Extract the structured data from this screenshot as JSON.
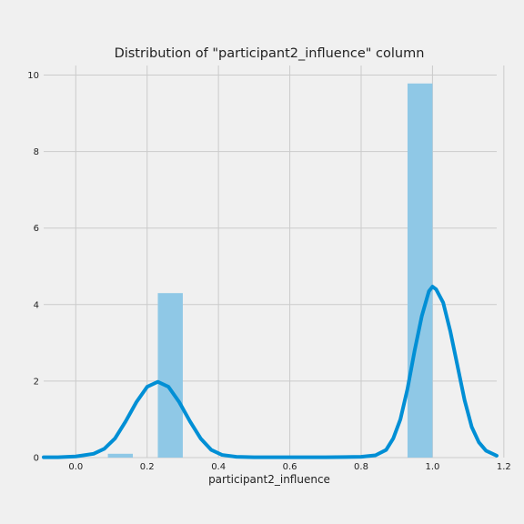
{
  "chart_data": {
    "type": "histogram",
    "title": "Distribution of \"participant2_influence\" column",
    "xlabel": "participant2_influence",
    "ylabel": "",
    "xlim": [
      -0.09,
      1.18
    ],
    "ylim": [
      0,
      10.25
    ],
    "x_ticks": [
      {
        "value": 0.0,
        "label": "0.0"
      },
      {
        "value": 0.2,
        "label": "0.2"
      },
      {
        "value": 0.4,
        "label": "0.4"
      },
      {
        "value": 0.6,
        "label": "0.6"
      },
      {
        "value": 0.8,
        "label": "0.8"
      },
      {
        "value": 1.0,
        "label": "1.0"
      },
      {
        "value": 1.2,
        "label": "1.2"
      }
    ],
    "y_ticks": [
      {
        "value": 0,
        "label": "0"
      },
      {
        "value": 2,
        "label": "2"
      },
      {
        "value": 4,
        "label": "4"
      },
      {
        "value": 6,
        "label": "6"
      },
      {
        "value": 8,
        "label": "8"
      },
      {
        "value": 10,
        "label": "10"
      }
    ],
    "grid": true,
    "bins": [
      {
        "x0": 0.09,
        "x1": 0.16,
        "value": 0.1
      },
      {
        "x0": 0.23,
        "x1": 0.3,
        "value": 4.3
      },
      {
        "x0": 0.93,
        "x1": 1.0,
        "value": 9.78
      }
    ],
    "kde": {
      "x": [
        -0.09,
        -0.05,
        0.0,
        0.05,
        0.08,
        0.11,
        0.14,
        0.17,
        0.2,
        0.23,
        0.26,
        0.29,
        0.32,
        0.35,
        0.38,
        0.41,
        0.45,
        0.5,
        0.6,
        0.7,
        0.8,
        0.84,
        0.87,
        0.89,
        0.91,
        0.93,
        0.95,
        0.97,
        0.99,
        1.0,
        1.01,
        1.03,
        1.05,
        1.07,
        1.09,
        1.11,
        1.13,
        1.15,
        1.18
      ],
      "y": [
        0.01,
        0.01,
        0.03,
        0.1,
        0.23,
        0.5,
        0.95,
        1.45,
        1.85,
        1.98,
        1.85,
        1.45,
        0.95,
        0.5,
        0.2,
        0.07,
        0.02,
        0.01,
        0.01,
        0.01,
        0.02,
        0.06,
        0.2,
        0.5,
        1.0,
        1.8,
        2.8,
        3.7,
        4.35,
        4.47,
        4.4,
        4.05,
        3.3,
        2.4,
        1.5,
        0.8,
        0.4,
        0.18,
        0.05
      ]
    },
    "colors": {
      "bar": "#8fc8e6",
      "line": "#008fd5",
      "background": "#f0f0f0",
      "grid": "#cbcbcb"
    }
  }
}
